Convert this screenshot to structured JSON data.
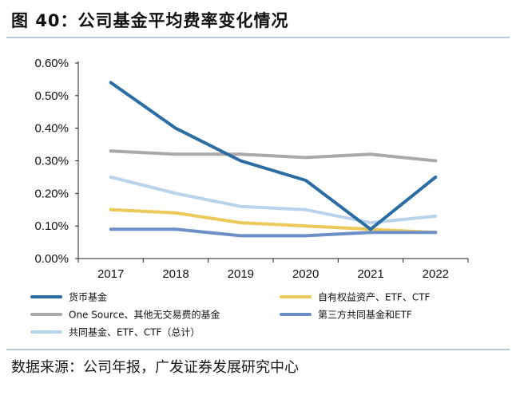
{
  "title": "图 40：公司基金平均费率变化情况",
  "source": "数据来源：公司年报，广发证券发展研究中心",
  "chart_data": {
    "type": "line",
    "categories": [
      "2017",
      "2018",
      "2019",
      "2020",
      "2021",
      "2022"
    ],
    "y_ticks": [
      "0.00%",
      "0.10%",
      "0.20%",
      "0.30%",
      "0.40%",
      "0.50%",
      "0.60%"
    ],
    "ylim": [
      0,
      0.6
    ],
    "unit": "%",
    "grid": false,
    "legend_position": "bottom",
    "series": [
      {
        "name": "货币基金",
        "color": "#2b6ca3",
        "values": [
          0.54,
          0.4,
          0.3,
          0.24,
          0.09,
          0.25
        ]
      },
      {
        "name": "自有权益资产、ETF、CTF",
        "color": "#ecc95a",
        "values": [
          0.15,
          0.14,
          0.11,
          0.1,
          0.09,
          0.08
        ]
      },
      {
        "name": "One Source、其他无交易费的基金",
        "color": "#a9a9a9",
        "values": [
          0.33,
          0.32,
          0.32,
          0.31,
          0.32,
          0.3
        ]
      },
      {
        "name": "第三方共同基金和ETF",
        "color": "#6b8fc6",
        "values": [
          0.09,
          0.09,
          0.07,
          0.07,
          0.08,
          0.08
        ]
      },
      {
        "name": "共同基金、ETF、CTF（总计）",
        "color": "#b9d3ec",
        "values": [
          0.25,
          0.2,
          0.16,
          0.15,
          0.11,
          0.13
        ]
      }
    ]
  }
}
